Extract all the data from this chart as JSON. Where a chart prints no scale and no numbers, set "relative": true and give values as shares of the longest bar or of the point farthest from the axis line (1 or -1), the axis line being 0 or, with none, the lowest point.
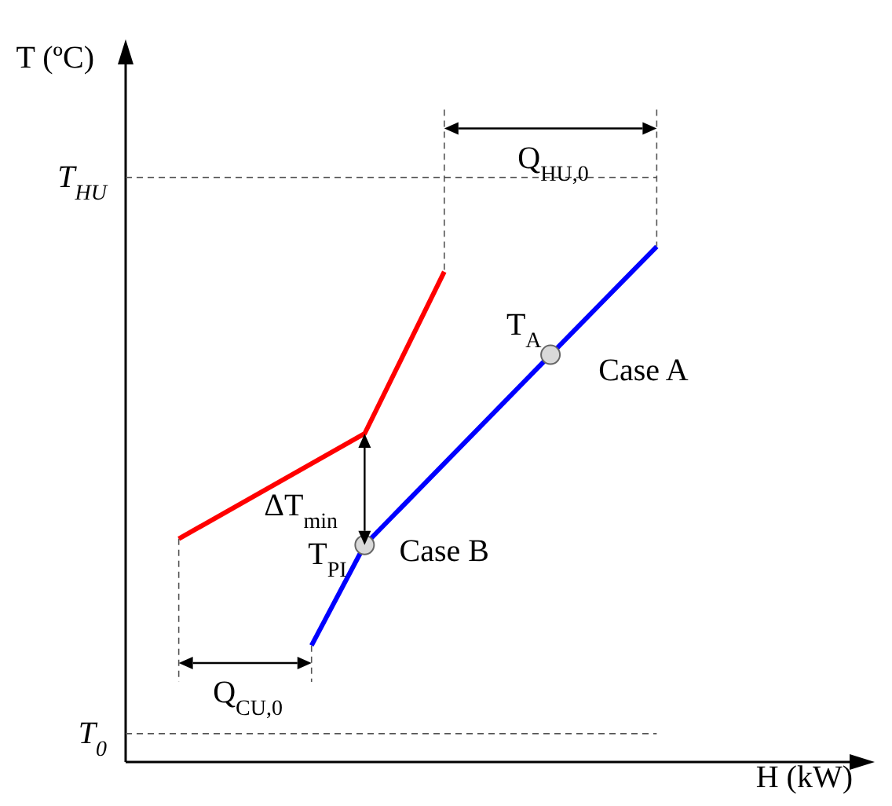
{
  "chart_data": {
    "type": "line",
    "relative": true,
    "xlabel": "H (kW)",
    "line_style": "solid",
    "categories": [
      null,
      null,
      null,
      null,
      null,
      null,
      null,
      null,
      null,
      null,
      null,
      null,
      null,
      null,
      null,
      null,
      null,
      null,
      null,
      null,
      null,
      null,
      null,
      null,
      null,
      null,
      null,
      null
    ],
    "series": [
      {
        "color": "#ff0000",
        "values": [
          null,
          null,
          0.433,
          null,
          null,
          null,
          null,
          null,
          null,
          0.637,
          null,
          null,
          0.951,
          null,
          null,
          null,
          null,
          null,
          null,
          null,
          null,
          null,
          null,
          null,
          null,
          null,
          null,
          null
        ]
      },
      {
        "color": "#0000ff",
        "marker": "circle",
        "values": [
          null,
          null,
          null,
          null,
          null,
          null,
          null,
          0.226,
          null,
          0.421,
          null,
          null,
          null,
          null,
          null,
          null,
          0.79,
          null,
          null,
          null,
          1,
          null,
          null,
          null,
          null,
          null,
          null,
          null
        ]
      }
    ],
    "annotations": [
      "T$_{A}$",
      "Case A",
      "T$_{PI}$",
      "Case B",
      "ΔT$_{min}$",
      "Q$_{HU,0}$",
      "Q$_{CU,0}$",
      "T$_{HU}$",
      "T$_{0}$",
      "T (ºC)"
    ]
  }
}
